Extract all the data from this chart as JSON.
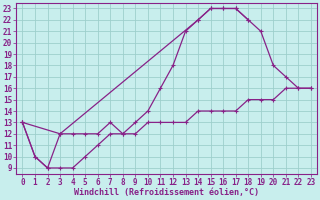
{
  "title": "",
  "xlabel": "Windchill (Refroidissement éolien,°C)",
  "bg_color": "#c8eeed",
  "grid_color": "#9ecfcc",
  "line_color": "#882288",
  "spine_color": "#882288",
  "xlim": [
    -0.5,
    23.5
  ],
  "ylim": [
    8.5,
    23.5
  ],
  "xticks": [
    0,
    1,
    2,
    3,
    4,
    5,
    6,
    7,
    8,
    9,
    10,
    11,
    12,
    13,
    14,
    15,
    16,
    17,
    18,
    19,
    20,
    21,
    22,
    23
  ],
  "yticks": [
    9,
    10,
    11,
    12,
    13,
    14,
    15,
    16,
    17,
    18,
    19,
    20,
    21,
    22,
    23
  ],
  "line1_x": [
    0,
    1,
    2,
    3,
    4,
    5,
    6,
    7,
    8,
    9,
    10,
    11,
    12,
    13,
    14,
    15,
    16,
    17,
    18
  ],
  "line1_y": [
    13,
    10,
    9,
    12,
    12,
    12,
    12,
    13,
    12,
    13,
    14,
    16,
    18,
    21,
    22,
    23,
    23,
    23,
    22
  ],
  "line2_x": [
    0,
    1,
    2,
    3,
    4,
    5,
    6,
    7,
    8,
    9,
    10,
    11,
    12,
    13,
    14,
    15,
    16,
    17,
    18,
    19,
    20,
    21,
    22,
    23
  ],
  "line2_y": [
    13,
    10,
    9,
    9,
    9,
    10,
    11,
    12,
    12,
    12,
    13,
    13,
    13,
    13,
    14,
    14,
    14,
    14,
    15,
    15,
    15,
    16,
    16,
    16
  ],
  "line3_x": [
    0,
    3,
    14,
    15,
    16,
    17,
    18,
    19,
    20,
    21,
    22,
    23
  ],
  "line3_y": [
    13,
    12,
    22,
    23,
    23,
    23,
    22,
    21,
    18,
    17,
    16,
    16
  ],
  "tick_fontsize": 5.5,
  "xlabel_fontsize": 6.0
}
